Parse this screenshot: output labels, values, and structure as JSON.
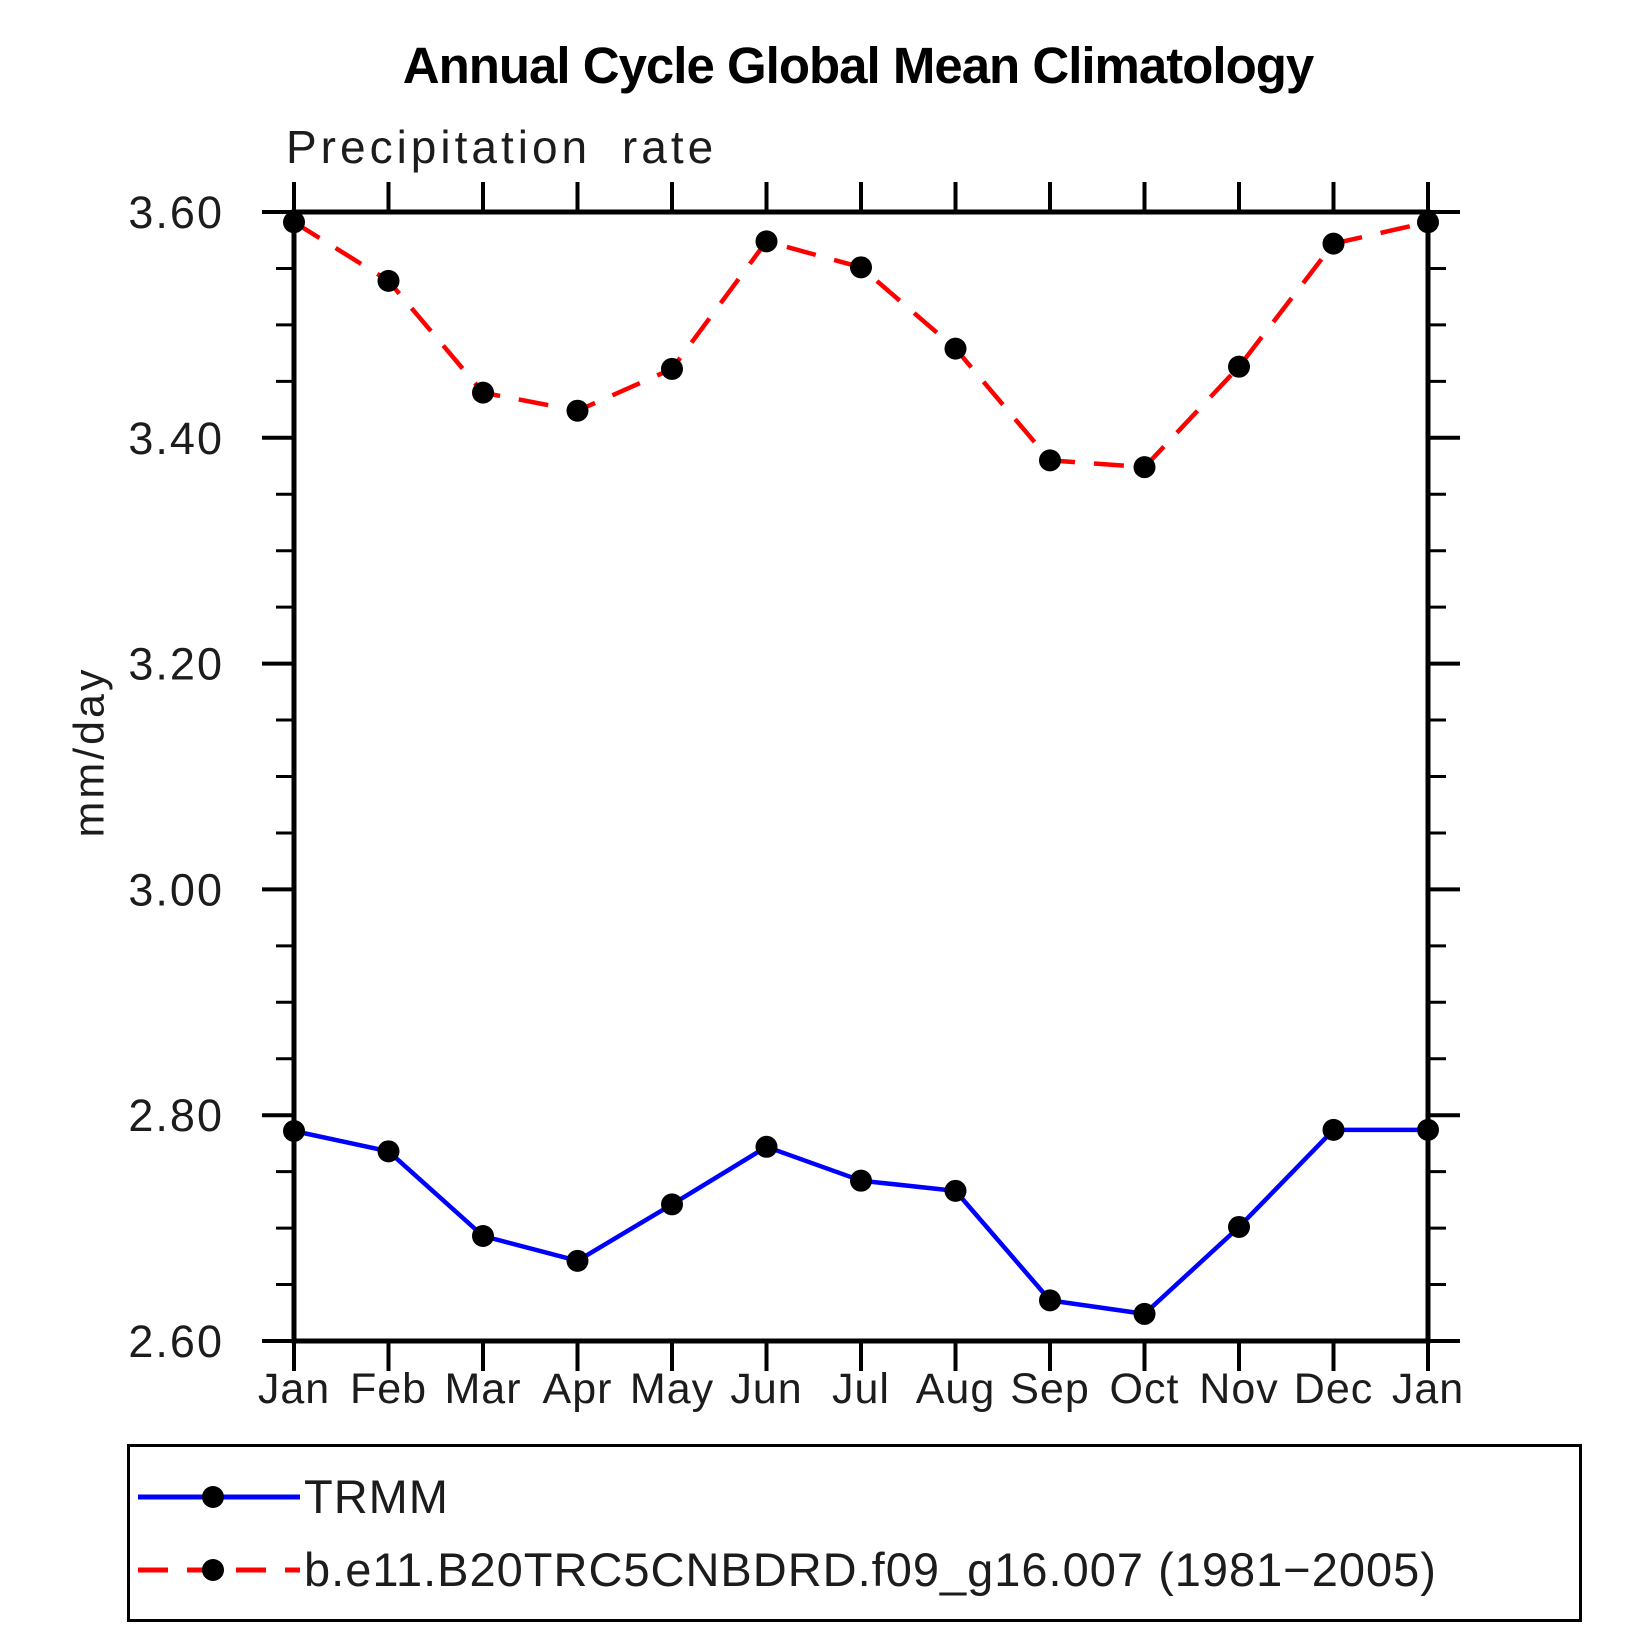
{
  "title": "Annual Cycle Global Mean Climatology",
  "chart_data": {
    "type": "line",
    "subtitle": "Precipitation rate",
    "ylabel": "mm/day",
    "xlabel": "",
    "categories": [
      "Jan",
      "Feb",
      "Mar",
      "Apr",
      "May",
      "Jun",
      "Jul",
      "Aug",
      "Sep",
      "Oct",
      "Nov",
      "Dec",
      "Jan"
    ],
    "ylim": [
      2.6,
      3.6
    ],
    "ytick_major_step": 0.2,
    "ytick_minor_step": 0.05,
    "ytick_labels": [
      "2.60",
      "2.80",
      "3.00",
      "3.20",
      "3.40",
      "3.60"
    ],
    "grid": false,
    "legend_position": "bottom",
    "series": [
      {
        "name": "TRMM",
        "color": "#0000ff",
        "line_style": "solid",
        "marker": "filled-circle",
        "marker_color": "#000000",
        "values": [
          2.786,
          2.768,
          2.693,
          2.671,
          2.721,
          2.772,
          2.742,
          2.733,
          2.636,
          2.624,
          2.701,
          2.787,
          2.787
        ]
      },
      {
        "name": "b.e11.B20TRC5CNBDRD.f09_g16.007 (1981−2005)",
        "color": "#ff0000",
        "line_style": "dashed",
        "marker": "filled-circle",
        "marker_color": "#000000",
        "values": [
          3.591,
          3.539,
          3.44,
          3.424,
          3.461,
          3.574,
          3.551,
          3.479,
          3.38,
          3.374,
          3.463,
          3.572,
          3.591
        ]
      }
    ]
  },
  "colors": {
    "axis": "#000000",
    "background": "#ffffff",
    "trmm_line": "#0000ff",
    "model_line": "#ff0000",
    "marker": "#000000"
  }
}
